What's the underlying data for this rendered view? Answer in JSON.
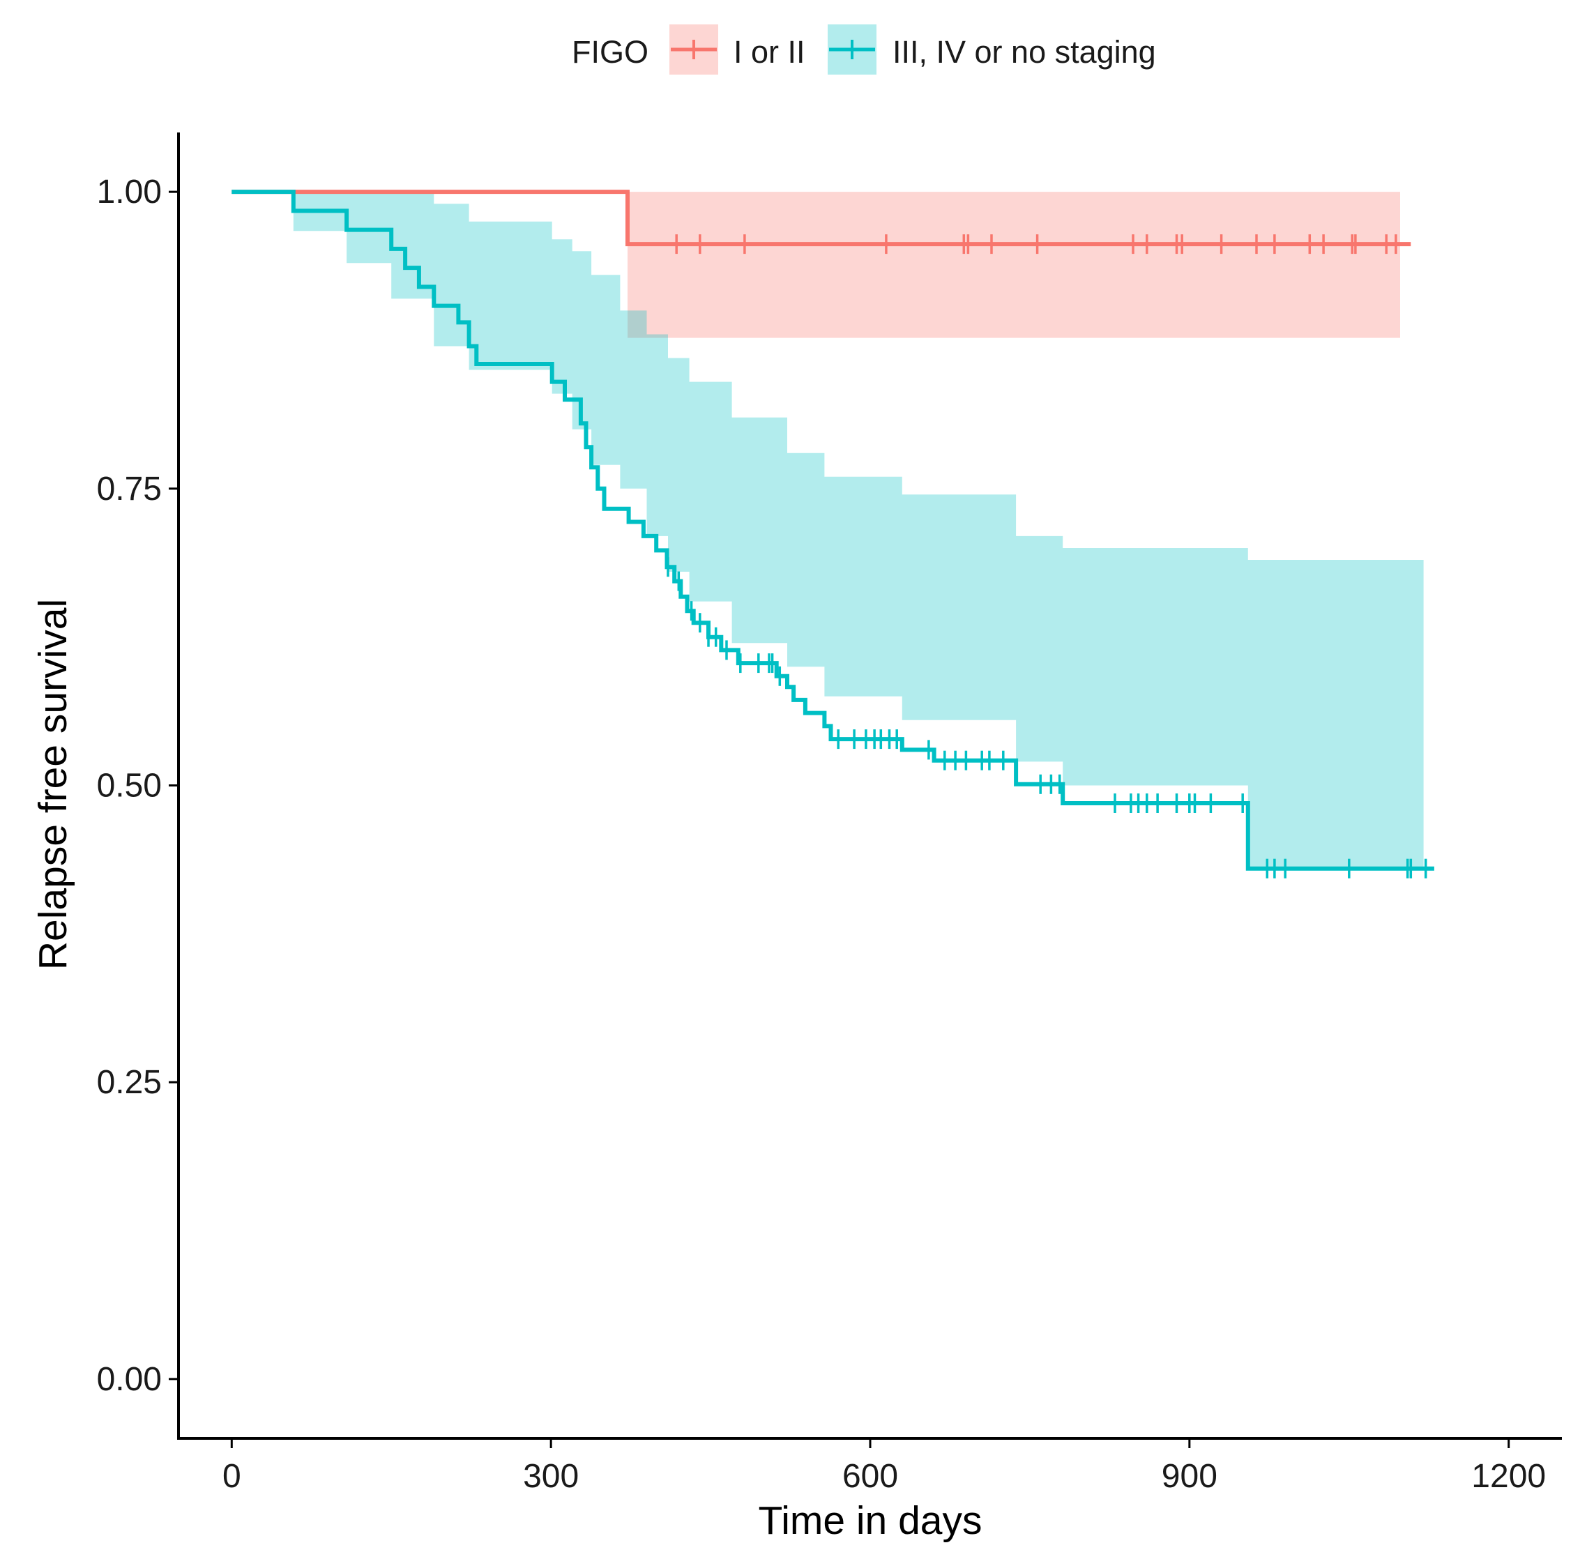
{
  "chart_data": {
    "type": "line",
    "subtype": "kaplan-meier",
    "title": "",
    "xlabel": "Time in days",
    "ylabel": "Relapse free survival",
    "xlim": [
      -50,
      1250
    ],
    "ylim": [
      -0.05,
      1.05
    ],
    "xticks": [
      0,
      300,
      600,
      900,
      1200
    ],
    "xtick_labels": [
      "0",
      "300",
      "600",
      "900",
      "1200"
    ],
    "yticks": [
      0,
      0.25,
      0.5,
      0.75,
      1
    ],
    "ytick_labels": [
      "0.00",
      "0.25",
      "0.50",
      "0.75",
      "1.00"
    ],
    "legend": {
      "title": "FIGO",
      "position": "top",
      "entries": [
        "I or II",
        "III, IV or no staging"
      ]
    },
    "series": [
      {
        "name": "I or II",
        "color": "#F8766D",
        "band_color": "#F8766D",
        "steps": [
          [
            0,
            1.0
          ],
          [
            372,
            0.956
          ]
        ],
        "end_x": 1108,
        "band_steps": [
          [
            372,
            0.877,
            1.0
          ]
        ],
        "band_end_x": 1098,
        "censor_times": [
          418,
          440,
          482,
          615,
          688,
          692,
          714,
          757,
          847,
          860,
          888,
          893,
          930,
          963,
          980,
          1013,
          1026,
          1053,
          1056,
          1085,
          1094
        ]
      },
      {
        "name": "III, IV or no staging",
        "color": "#00BFC4",
        "band_color": "#00BFC4",
        "steps": [
          [
            0,
            1.0
          ],
          [
            58,
            0.984
          ],
          [
            108,
            0.968
          ],
          [
            150,
            0.952
          ],
          [
            163,
            0.936
          ],
          [
            176,
            0.92
          ],
          [
            190,
            0.904
          ],
          [
            213,
            0.89
          ],
          [
            223,
            0.87
          ],
          [
            230,
            0.855
          ],
          [
            301,
            0.84
          ],
          [
            313,
            0.825
          ],
          [
            328,
            0.805
          ],
          [
            333,
            0.785
          ],
          [
            338,
            0.768
          ],
          [
            344,
            0.75
          ],
          [
            350,
            0.733
          ],
          [
            373,
            0.722
          ],
          [
            387,
            0.71
          ],
          [
            399,
            0.698
          ],
          [
            409,
            0.684
          ],
          [
            416,
            0.672
          ],
          [
            422,
            0.659
          ],
          [
            428,
            0.647
          ],
          [
            434,
            0.637
          ],
          [
            448,
            0.625
          ],
          [
            460,
            0.614
          ],
          [
            476,
            0.603
          ],
          [
            512,
            0.592
          ],
          [
            522,
            0.583
          ],
          [
            528,
            0.572
          ],
          [
            539,
            0.561
          ],
          [
            557,
            0.55
          ],
          [
            563,
            0.539
          ],
          [
            630,
            0.53
          ],
          [
            660,
            0.521
          ],
          [
            737,
            0.501
          ],
          [
            781,
            0.485
          ],
          [
            955,
            0.43
          ]
        ],
        "end_x": 1130,
        "band_steps": [
          [
            0,
            1.0,
            1.0
          ],
          [
            58,
            0.967,
            1.0
          ],
          [
            108,
            0.94,
            1.0
          ],
          [
            150,
            0.91,
            1.0
          ],
          [
            190,
            0.87,
            0.99
          ],
          [
            223,
            0.85,
            0.975
          ],
          [
            301,
            0.83,
            0.96
          ],
          [
            320,
            0.8,
            0.95
          ],
          [
            338,
            0.77,
            0.93
          ],
          [
            365,
            0.75,
            0.9
          ],
          [
            390,
            0.71,
            0.88
          ],
          [
            410,
            0.68,
            0.86
          ],
          [
            430,
            0.655,
            0.84
          ],
          [
            470,
            0.62,
            0.81
          ],
          [
            522,
            0.6,
            0.78
          ],
          [
            557,
            0.575,
            0.76
          ],
          [
            630,
            0.555,
            0.745
          ],
          [
            737,
            0.52,
            0.71
          ],
          [
            781,
            0.5,
            0.7
          ],
          [
            955,
            0.43,
            0.69
          ]
        ],
        "band_end_x": 1120,
        "censor_times": [
          410,
          420,
          432,
          440,
          448,
          455,
          465,
          478,
          495,
          505,
          508,
          515,
          570,
          585,
          596,
          604,
          610,
          618,
          625,
          655,
          670,
          680,
          690,
          705,
          712,
          725,
          760,
          770,
          778,
          830,
          845,
          852,
          860,
          870,
          888,
          900,
          905,
          920,
          950,
          973,
          980,
          990,
          1050,
          1105,
          1108,
          1122
        ]
      }
    ]
  }
}
